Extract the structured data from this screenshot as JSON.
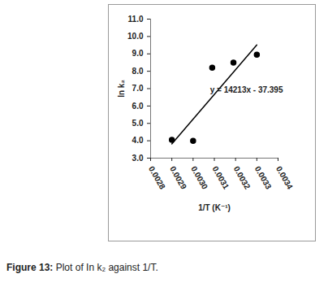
{
  "chart_data": {
    "type": "scatter",
    "caption": "Figure 13: Plot of In k₂ against 1/T.",
    "x_label": "1/T (K⁻¹)",
    "y_label": "ln k₂",
    "x": [
      0.0029,
      0.003,
      0.00309,
      0.00319,
      0.0033
    ],
    "values": [
      4.05,
      4.0,
      8.2,
      8.5,
      8.95
    ],
    "color": "#000000",
    "marker": "circle",
    "trendline": {
      "x": [
        0.0029,
        0.0033
      ],
      "values": [
        3.82,
        9.51
      ],
      "line_style": "solid",
      "color": "#000000"
    },
    "annotation": "y = 14213x - 37.395",
    "xlim": [
      0.0028,
      0.0034
    ],
    "xticks": [
      0.0028,
      0.0029,
      {
        "value": 0.003,
        "label": "0.0030"
      },
      0.0031,
      0.0032,
      0.0033,
      0.0034
    ],
    "ylim": [
      3,
      11
    ],
    "yticks": [
      {
        "value": 3,
        "label": "3.0"
      },
      {
        "value": 4,
        "label": "4.0"
      },
      {
        "value": 5,
        "label": "5.0"
      },
      {
        "value": 6,
        "label": "6.0"
      },
      {
        "value": 7,
        "label": "7.0"
      },
      {
        "value": 8,
        "label": "8.0"
      },
      {
        "value": 9,
        "label": "9.0"
      },
      {
        "value": 10,
        "label": "10.0"
      },
      {
        "value": 11,
        "label": "11.0"
      }
    ],
    "grid": false
  }
}
